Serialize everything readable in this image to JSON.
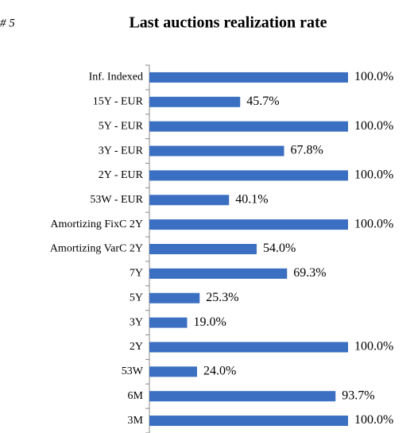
{
  "chart_data": {
    "type": "bar",
    "orientation": "horizontal",
    "title": "Last auctions realization rate",
    "annotation": "# 5",
    "categories": [
      "Inf. Indexed",
      "15Y - EUR",
      "5Y - EUR",
      "3Y - EUR",
      "2Y - EUR",
      "53W - EUR",
      "Amortizing FixC 2Y",
      "Amortizing VarC 2Y",
      "7Y",
      "5Y",
      "3Y",
      "2Y",
      "53W",
      "6M",
      "3M"
    ],
    "values": [
      100,
      45.7,
      100,
      67.8,
      100,
      40.1,
      100,
      54.0,
      69.3,
      25.3,
      19.0,
      100,
      24.0,
      93.7,
      100
    ],
    "value_labels": [
      "100.0%",
      "45.7%",
      "100.0%",
      "67.8%",
      "100.0%",
      "40.1%",
      "100.0%",
      "54.0%",
      "69.3%",
      "25.3%",
      "19.0%",
      "100.0%",
      "24.0%",
      "93.7%",
      "100.0%"
    ],
    "color": "#3b6fc1",
    "xlim": [
      0,
      100
    ]
  }
}
